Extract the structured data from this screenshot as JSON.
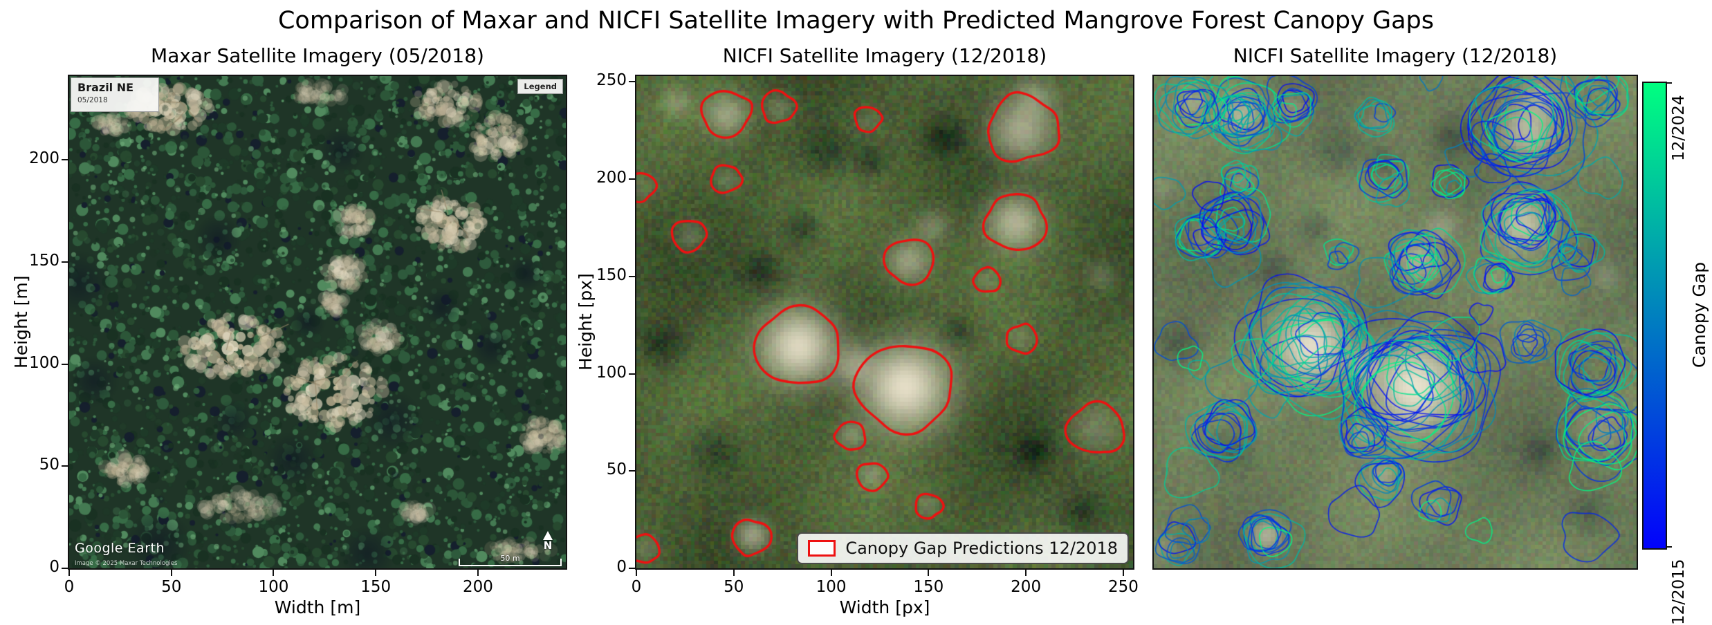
{
  "figure": {
    "title": "Comparison of Maxar and NICFI Satellite Imagery with Predicted Mangrove Forest Canopy Gaps"
  },
  "panels": [
    {
      "title": "Maxar Satellite Imagery (05/2018)",
      "xlabel": "Width [m]",
      "ylabel": "Height [m]",
      "x_ticks": [
        0,
        50,
        100,
        150,
        200
      ],
      "y_ticks": [
        0,
        50,
        100,
        150,
        200
      ],
      "overlays": {
        "region_label": "Brazil NE",
        "region_date": "05/2018",
        "legend_box_label": "Legend",
        "credit": "Google Earth",
        "copyright": "Image © 2025 Maxar Technologies",
        "scalebar_label": "50 m",
        "north_label": "N"
      }
    },
    {
      "title": "NICFI Satellite Imagery (12/2018)",
      "xlabel": "Width [px]",
      "ylabel": "Height [px]",
      "x_ticks": [
        0,
        50,
        100,
        150,
        200,
        250
      ],
      "y_ticks": [
        0,
        50,
        100,
        150,
        200,
        250
      ],
      "legend": {
        "label": "Canopy Gap Predictions 12/2018",
        "color": "#ee1111"
      }
    },
    {
      "title": "NICFI Satellite Imagery (12/2018)",
      "colorbar": {
        "label": "Canopy Gap Predictions",
        "top_label": "12/2024",
        "bottom_label": "12/2015",
        "top_color": "#00ff80",
        "bottom_color": "#0000ff"
      }
    }
  ],
  "chart_data": [
    {
      "type": "image",
      "title": "Maxar Satellite Imagery (05/2018)",
      "xlabel": "Width [m]",
      "ylabel": "Height [m]",
      "xlim": [
        0,
        243
      ],
      "ylim": [
        0,
        241
      ],
      "xticks": [
        0,
        50,
        100,
        150,
        200
      ],
      "yticks": [
        0,
        50,
        100,
        150,
        200
      ],
      "clearings": [
        [
          0.2,
          0.065,
          0.085,
          0.045,
          0.8
        ],
        [
          0.085,
          0.1,
          0.03,
          0.02,
          0.35
        ],
        [
          0.5,
          0.035,
          0.06,
          0.02,
          0.3
        ],
        [
          0.76,
          0.055,
          0.065,
          0.04,
          0.6
        ],
        [
          0.86,
          0.125,
          0.055,
          0.045,
          0.6
        ],
        [
          0.77,
          0.3,
          0.07,
          0.05,
          0.75
        ],
        [
          0.575,
          0.295,
          0.035,
          0.028,
          0.5
        ],
        [
          0.555,
          0.4,
          0.038,
          0.03,
          0.55
        ],
        [
          0.53,
          0.46,
          0.025,
          0.02,
          0.4
        ],
        [
          0.33,
          0.55,
          0.1,
          0.062,
          0.95
        ],
        [
          0.53,
          0.64,
          0.105,
          0.072,
          0.95
        ],
        [
          0.625,
          0.53,
          0.04,
          0.028,
          0.45
        ],
        [
          0.115,
          0.8,
          0.045,
          0.028,
          0.5
        ],
        [
          0.34,
          0.875,
          0.08,
          0.03,
          0.35
        ],
        [
          0.955,
          0.73,
          0.045,
          0.033,
          0.5
        ],
        [
          0.7,
          0.885,
          0.025,
          0.018,
          0.3
        ],
        [
          0.905,
          0.965,
          0.07,
          0.018,
          0.3
        ]
      ],
      "shadows": [
        [
          0.02,
          0.42,
          46
        ],
        [
          0.3,
          0.33,
          34
        ],
        [
          0.48,
          0.5,
          26
        ],
        [
          0.65,
          0.7,
          44
        ],
        [
          0.05,
          0.62,
          36
        ],
        [
          0.45,
          0.78,
          40
        ],
        [
          0.85,
          0.55,
          30
        ],
        [
          0.55,
          0.15,
          34
        ],
        [
          0.92,
          0.4,
          26
        ],
        [
          0.18,
          0.95,
          48
        ],
        [
          0.6,
          0.97,
          40
        ],
        [
          0.33,
          0.7,
          30
        ],
        [
          0.75,
          0.47,
          28
        ]
      ]
    },
    {
      "type": "contour",
      "title": "NICFI Satellite Imagery (12/2018)",
      "xlabel": "Width [px]",
      "ylabel": "Height [px]",
      "xlim": [
        0,
        255
      ],
      "ylim": [
        0,
        253
      ],
      "xticks": [
        0,
        50,
        100,
        150,
        200,
        250
      ],
      "yticks": [
        0,
        50,
        100,
        150,
        200,
        250
      ],
      "series": "Canopy Gap Predictions 12/2018",
      "contour_color": "#ee1111",
      "gaps": [
        [
          46,
          234,
          13,
          0.5
        ],
        [
          73,
          237,
          9,
          0.25
        ],
        [
          119,
          231,
          7,
          0.15
        ],
        [
          198,
          226,
          19,
          0.6
        ],
        [
          46,
          200,
          8,
          0.2
        ],
        [
          2,
          196,
          8,
          0.15
        ],
        [
          27,
          171,
          9,
          0.25
        ],
        [
          195,
          178,
          16,
          0.65
        ],
        [
          140,
          158,
          13,
          0.5
        ],
        [
          180,
          148,
          7,
          0.15
        ],
        [
          83,
          114,
          22,
          0.95
        ],
        [
          198,
          118,
          8,
          0.2
        ],
        [
          138,
          93,
          25,
          1.0
        ],
        [
          110,
          68,
          8,
          0.3
        ],
        [
          236,
          72,
          15,
          0.25
        ],
        [
          121,
          47,
          8,
          0.3
        ],
        [
          150,
          32,
          7,
          0.2
        ],
        [
          59,
          16,
          10,
          0.55
        ],
        [
          4,
          10,
          8,
          0.2
        ]
      ],
      "faint_patches": [
        [
          112,
          104,
          12,
          0.45
        ],
        [
          152,
          176,
          10,
          0.3
        ],
        [
          205,
          243,
          12,
          0.35
        ],
        [
          240,
          150,
          8,
          0.2
        ],
        [
          20,
          240,
          9,
          0.3
        ]
      ],
      "dark_patches": [
        [
          97,
          215,
          14
        ],
        [
          158,
          222,
          10
        ],
        [
          64,
          152,
          12
        ],
        [
          166,
          122,
          10
        ],
        [
          13,
          115,
          12
        ],
        [
          230,
          28,
          12
        ],
        [
          40,
          60,
          14
        ],
        [
          205,
          60,
          10
        ],
        [
          120,
          210,
          9
        ],
        [
          85,
          175,
          10
        ]
      ]
    },
    {
      "type": "contour",
      "title": "NICFI Satellite Imagery (12/2018)",
      "colorbar": {
        "label": "Canopy Gap Predictions",
        "min_label": "12/2015",
        "max_label": "12/2024",
        "cmap": [
          "#0000ff",
          "#0080bf",
          "#00ff80"
        ]
      },
      "clusters": [
        [
          46,
          234,
          14,
          16
        ],
        [
          73,
          237,
          10,
          8
        ],
        [
          119,
          231,
          8,
          5
        ],
        [
          198,
          226,
          20,
          18
        ],
        [
          46,
          200,
          9,
          6
        ],
        [
          27,
          171,
          10,
          8
        ],
        [
          43,
          177,
          12,
          10
        ],
        [
          195,
          178,
          17,
          16
        ],
        [
          140,
          158,
          14,
          14
        ],
        [
          180,
          148,
          8,
          6
        ],
        [
          83,
          114,
          23,
          20
        ],
        [
          198,
          118,
          9,
          6
        ],
        [
          138,
          93,
          26,
          22
        ],
        [
          110,
          68,
          9,
          6
        ],
        [
          236,
          72,
          16,
          12
        ],
        [
          121,
          47,
          9,
          7
        ],
        [
          150,
          32,
          8,
          5
        ],
        [
          59,
          16,
          11,
          9
        ],
        [
          20,
          238,
          12,
          10
        ],
        [
          237,
          243,
          10,
          8
        ],
        [
          158,
          198,
          8,
          5
        ],
        [
          235,
          101,
          14,
          12
        ],
        [
          38,
          71,
          12,
          10
        ],
        [
          13,
          12,
          8,
          5
        ],
        [
          122,
          200,
          9,
          5
        ],
        [
          222,
          160,
          9,
          6
        ],
        [
          100,
          160,
          8,
          4
        ]
      ],
      "lone_rings": 38
    }
  ]
}
